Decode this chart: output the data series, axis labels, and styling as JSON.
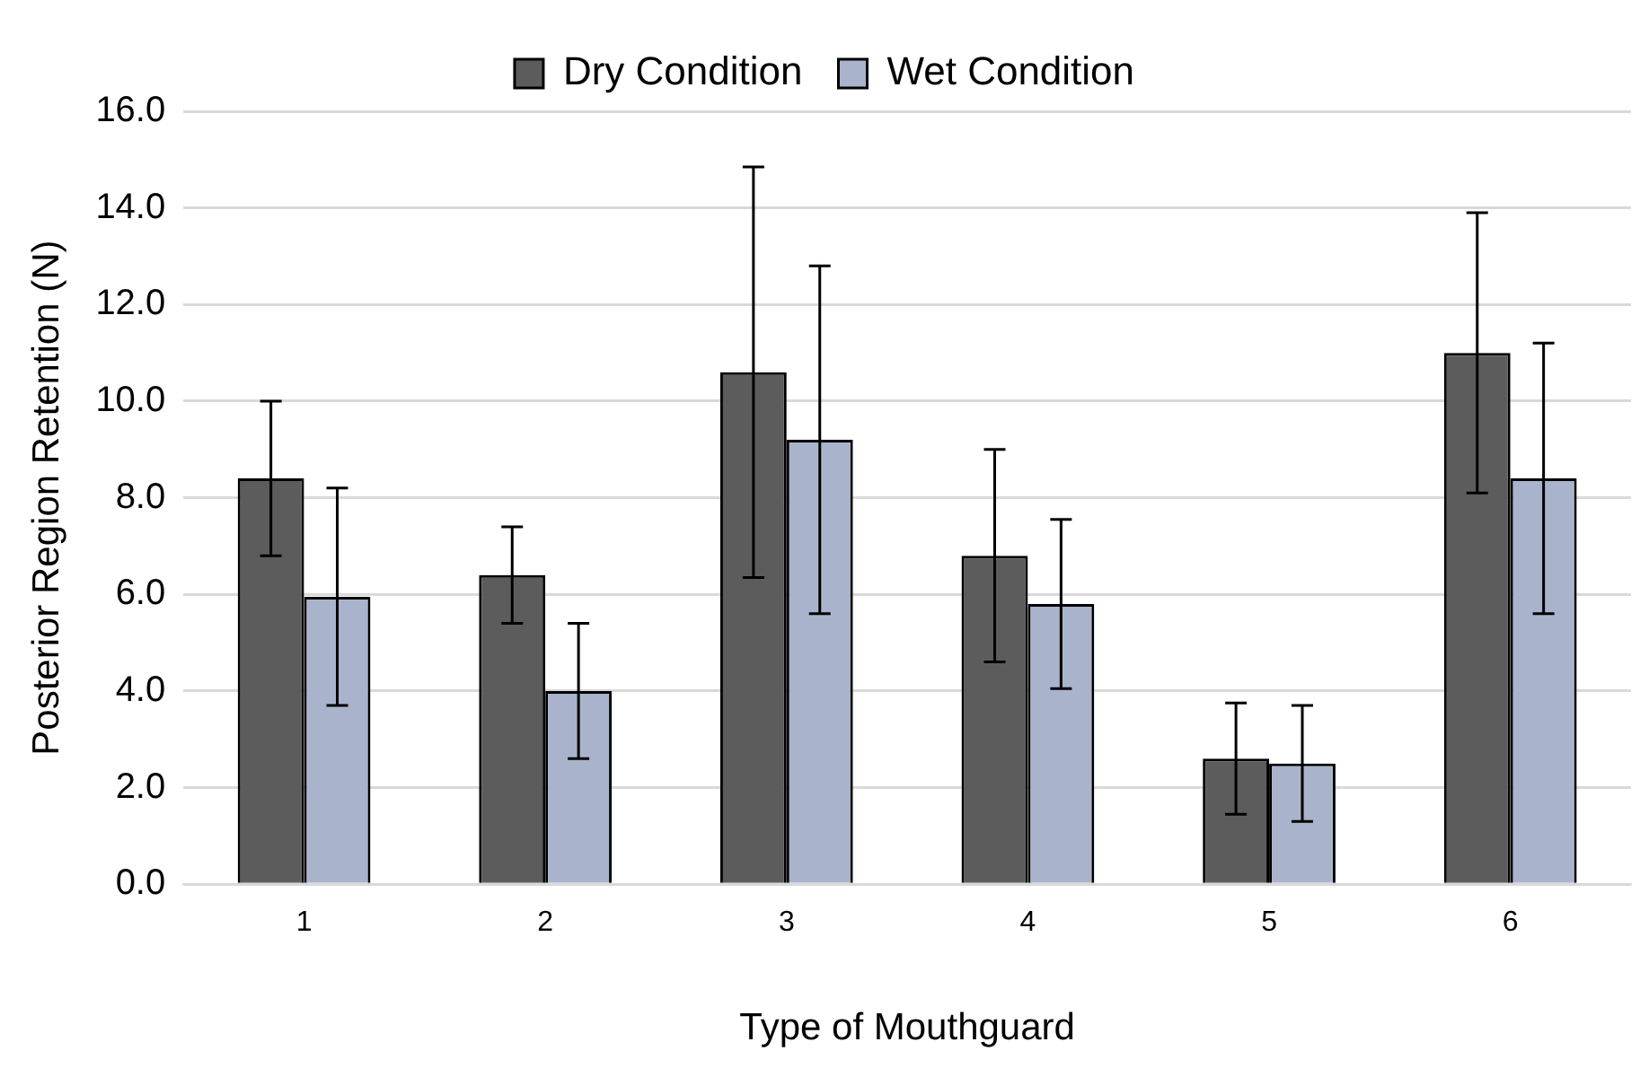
{
  "chart_data": {
    "type": "bar",
    "xlabel": "Type of Mouthguard",
    "ylabel": "Posterior Region Retention (N)",
    "categories": [
      "1",
      "2",
      "3",
      "4",
      "5",
      "6"
    ],
    "series": [
      {
        "name": "Dry Condition",
        "color": "#5c5c5c",
        "values": [
          8.4,
          6.4,
          10.6,
          6.8,
          2.6,
          11.0
        ],
        "errors": [
          1.6,
          1.0,
          4.25,
          2.2,
          1.15,
          2.9
        ]
      },
      {
        "name": "Wet Condition",
        "color": "#a9b4cc",
        "values": [
          5.95,
          4.0,
          9.2,
          5.8,
          2.5,
          8.4
        ],
        "errors": [
          2.25,
          1.4,
          3.6,
          1.75,
          1.2,
          2.8
        ]
      }
    ],
    "ylim": [
      0,
      16
    ],
    "yticks": [
      {
        "value": 0,
        "label": "0.0"
      },
      {
        "value": 2,
        "label": "2.0"
      },
      {
        "value": 4,
        "label": "4.0"
      },
      {
        "value": 6,
        "label": "6.0"
      },
      {
        "value": 8,
        "label": "8.0"
      },
      {
        "value": 10,
        "label": "10.0"
      },
      {
        "value": 12,
        "label": "12.0"
      },
      {
        "value": 14,
        "label": "14.0"
      },
      {
        "value": 16,
        "label": "16.0"
      }
    ],
    "grid": "y",
    "legend": "top"
  }
}
